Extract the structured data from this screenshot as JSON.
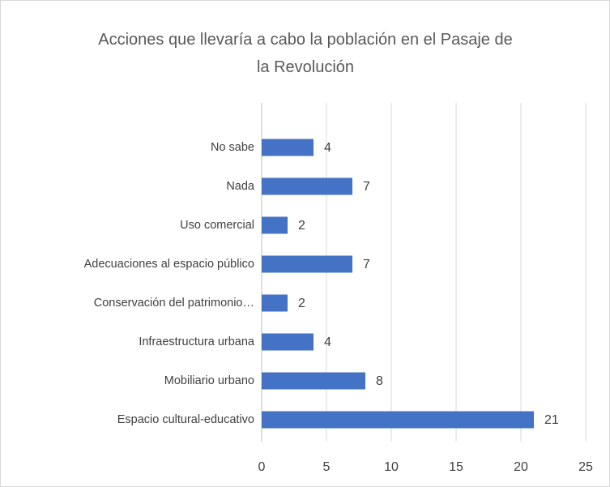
{
  "chart_data": {
    "type": "barh",
    "title": "Acciones que llevaría a cabo la población en el Pasaje de la Revolución",
    "categories": [
      "No sabe",
      "Nada",
      "Uso comercial",
      "Adecuaciones al espacio público",
      "Conservación del patrimonio…",
      "Infraestructura urbana",
      "Mobiliario urbano",
      "Espacio cultural-educativo"
    ],
    "values": [
      4,
      7,
      2,
      7,
      2,
      4,
      8,
      21
    ],
    "color": "#4472c4",
    "xlim": [
      0,
      25
    ],
    "xticks": [
      0,
      5,
      10,
      15,
      20,
      25
    ],
    "grid": true
  }
}
